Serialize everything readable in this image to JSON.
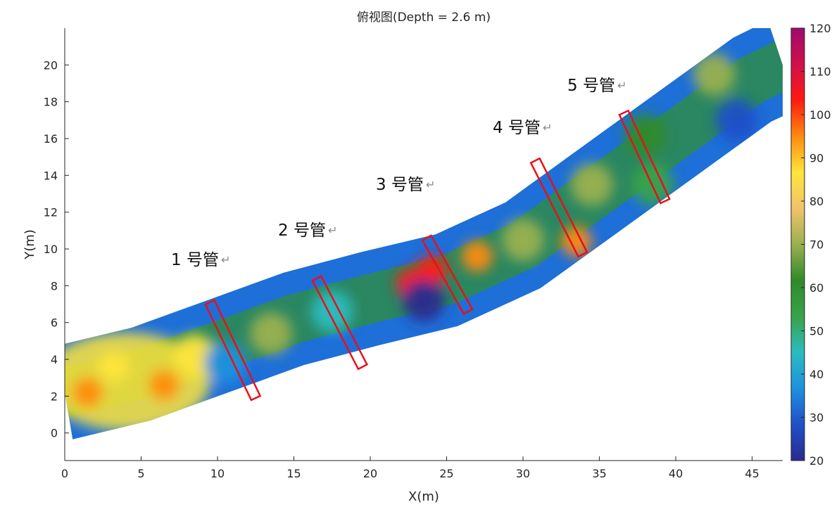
{
  "chart_data": {
    "type": "heatmap",
    "title": "俯视图(Depth = 2.6 m)",
    "xlabel": "X(m)",
    "ylabel": "Y(m)",
    "xlim": [
      0,
      47
    ],
    "ylim": [
      -1.5,
      22
    ],
    "x_ticks": [
      0,
      5,
      10,
      15,
      20,
      25,
      30,
      35,
      40,
      45
    ],
    "y_ticks": [
      0,
      2,
      4,
      6,
      8,
      10,
      12,
      14,
      16,
      18,
      20
    ],
    "colorbar": {
      "min": 20,
      "max": 120,
      "ticks": [
        20,
        30,
        40,
        50,
        60,
        70,
        80,
        90,
        100,
        110,
        120
      ],
      "colormap": [
        "#2b2a8e",
        "#1f50c8",
        "#1e90e0",
        "#2bbcc0",
        "#3aa24a",
        "#2f8a2a",
        "#9ab050",
        "#f1c36a",
        "#ffe53a",
        "#ff8a10",
        "#ff1a10",
        "#d0104a",
        "#a00a6e"
      ]
    },
    "strip_centerline": [
      {
        "x": 0,
        "y": 2.2
      },
      {
        "x": 5,
        "y": 3.2
      },
      {
        "x": 10,
        "y": 4.7
      },
      {
        "x": 15,
        "y": 6.2
      },
      {
        "x": 20,
        "y": 7.3
      },
      {
        "x": 25,
        "y": 8.3
      },
      {
        "x": 30,
        "y": 10.2
      },
      {
        "x": 35,
        "y": 13.2
      },
      {
        "x": 40,
        "y": 16.2
      },
      {
        "x": 45,
        "y": 19.2
      },
      {
        "x": 47,
        "y": 20.0
      }
    ],
    "strip_halfwidth_m": 2.6,
    "anomalies": [
      {
        "x": 1.5,
        "y": 2.2,
        "value": 92
      },
      {
        "x": 3.2,
        "y": 3.6,
        "value": 90
      },
      {
        "x": 6.5,
        "y": 2.6,
        "value": 95
      },
      {
        "x": 8.5,
        "y": 4.2,
        "value": 88
      },
      {
        "x": 10.5,
        "y": 3.8,
        "value": 38
      },
      {
        "x": 13.5,
        "y": 5.4,
        "value": 72
      },
      {
        "x": 17.5,
        "y": 6.6,
        "value": 48
      },
      {
        "x": 22.7,
        "y": 8.1,
        "value": 100
      },
      {
        "x": 24,
        "y": 8.8,
        "value": 105
      },
      {
        "x": 23.5,
        "y": 7.2,
        "value": 22
      },
      {
        "x": 27,
        "y": 9.6,
        "value": 95
      },
      {
        "x": 30,
        "y": 10.5,
        "value": 68
      },
      {
        "x": 33.5,
        "y": 10.4,
        "value": 95
      },
      {
        "x": 34.5,
        "y": 13.5,
        "value": 66
      },
      {
        "x": 38,
        "y": 16.2,
        "value": 64
      },
      {
        "x": 42.5,
        "y": 19.5,
        "value": 66
      },
      {
        "x": 38.5,
        "y": 13.5,
        "value": 52
      },
      {
        "x": 44,
        "y": 17,
        "value": 30
      }
    ],
    "pipes": [
      {
        "label": "1 号管",
        "x_from": 9.5,
        "y_from": 7.1,
        "x_to": 12.5,
        "y_to": 1.9
      },
      {
        "label": "2 号管",
        "x_from": 16.5,
        "y_from": 8.4,
        "x_to": 19.5,
        "y_to": 3.6
      },
      {
        "label": "3 号管",
        "x_from": 23.7,
        "y_from": 10.6,
        "x_to": 26.4,
        "y_to": 6.6
      },
      {
        "label": "4 号管",
        "x_from": 30.8,
        "y_from": 14.8,
        "x_to": 33.9,
        "y_to": 9.7
      },
      {
        "label": "5 号管",
        "x_from": 36.6,
        "y_from": 17.4,
        "x_to": 39.3,
        "y_to": 12.6
      }
    ]
  }
}
